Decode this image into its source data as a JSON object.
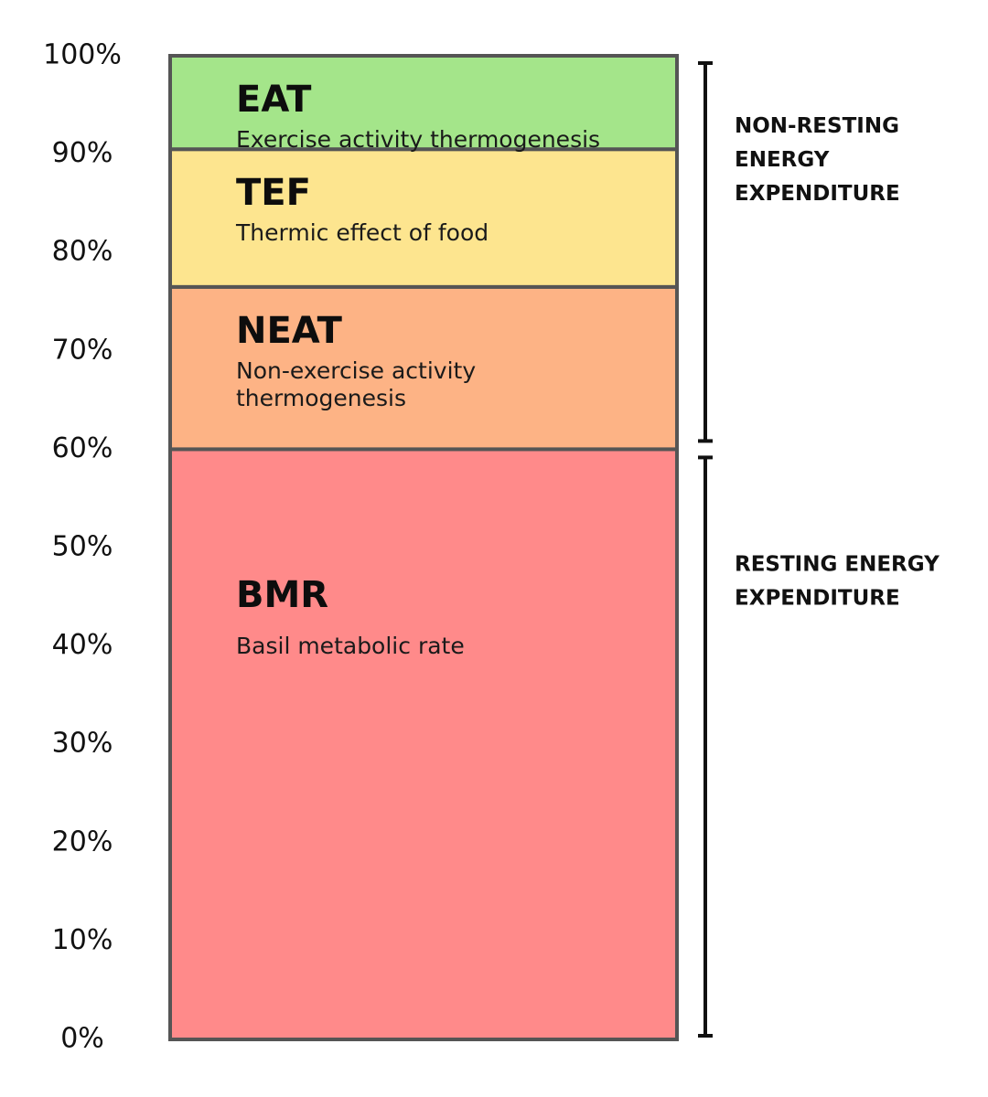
{
  "chart_data": {
    "type": "bar",
    "stacked": true,
    "ylim": [
      0,
      100
    ],
    "y_ticks": [
      "0%",
      "10%",
      "20%",
      "30%",
      "40%",
      "50%",
      "60%",
      "70%",
      "80%",
      "90%",
      "100%"
    ],
    "segments": [
      {
        "name": "BMR",
        "description": [
          "Basil metabolic rate"
        ],
        "start": 0,
        "end": 60,
        "color": "#ff8a8a"
      },
      {
        "name": "NEAT",
        "description": [
          "Non-exercise activity",
          "thermogenesis"
        ],
        "start": 60,
        "end": 76.5,
        "color": "#fdb385"
      },
      {
        "name": "TEF",
        "description": [
          "Thermic effect of food"
        ],
        "start": 76.5,
        "end": 90.5,
        "color": "#fde58f"
      },
      {
        "name": "EAT",
        "description": [
          "Exercise activity thermogenesis"
        ],
        "start": 90.5,
        "end": 100,
        "color": "#a4e58a"
      }
    ],
    "groups": [
      {
        "label": [
          "NON-RESTING",
          "ENERGY",
          "EXPENDITURE"
        ],
        "start": 60,
        "end": 100
      },
      {
        "label": [
          "RESTING ENERGY",
          "EXPENDITURE"
        ],
        "start": 0,
        "end": 60
      }
    ],
    "border_color": "#555555"
  }
}
